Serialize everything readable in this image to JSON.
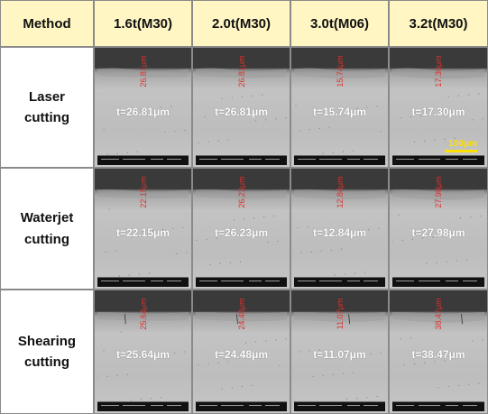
{
  "header": {
    "method": "Method",
    "columns": [
      "1.6t(M30)",
      "2.0t(M30)",
      "3.0t(M06)",
      "3.2t(M30)"
    ]
  },
  "rows": [
    {
      "label_line1": "Laser cutting",
      "label_line2": "",
      "cells": [
        {
          "thickness": "t=26.81μm",
          "measure": "26.81μm"
        },
        {
          "thickness": "t=26.81μm",
          "measure": "26.81μm"
        },
        {
          "thickness": "t=15.74μm",
          "measure": "15.74μm"
        },
        {
          "thickness": "t=17.30μm",
          "measure": "17.30μm"
        }
      ]
    },
    {
      "label_line1": "Waterjet",
      "label_line2": "cutting",
      "cells": [
        {
          "thickness": "t=22.15μm",
          "measure": "22.15μm"
        },
        {
          "thickness": "t=26.23μm",
          "measure": "26.23μm"
        },
        {
          "thickness": "t=12.84μm",
          "measure": "12.84μm"
        },
        {
          "thickness": "t=27.98μm",
          "measure": "27.98μm"
        }
      ]
    },
    {
      "label_line1": "Shearing",
      "label_line2": "cutting",
      "cells": [
        {
          "thickness": "t=25.64μm",
          "measure": "25.64μm"
        },
        {
          "thickness": "t=24.48μm",
          "measure": "24.48μm"
        },
        {
          "thickness": "t=11.07μm",
          "measure": "11.07μm"
        },
        {
          "thickness": "t=38.47μm",
          "measure": "38.47μm"
        }
      ]
    }
  ],
  "scale_bar": "100μm",
  "colors": {
    "header_bg": "#fff6c4",
    "measurement_red": "#e0302a",
    "scale_yellow": "#ffe100"
  }
}
